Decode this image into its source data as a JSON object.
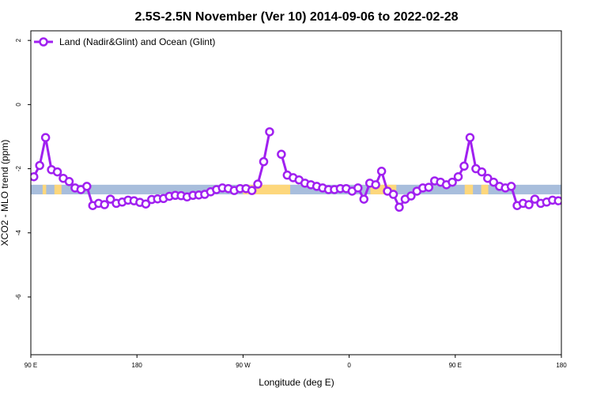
{
  "chart_data": {
    "type": "line",
    "title": "2.5S-2.5N November (Ver 10)   2014-09-06 to 2022-02-28",
    "xlabel": "Longitude (deg E)",
    "ylabel": "XCO2 - MLO trend (ppm)",
    "xlim": [
      90,
      540
    ],
    "ylim": [
      -7.8,
      2.3
    ],
    "xticks": [
      {
        "value": 90,
        "label": "90 E"
      },
      {
        "value": 180,
        "label": "180"
      },
      {
        "value": 270,
        "label": "90 W"
      },
      {
        "value": 360,
        "label": "0"
      },
      {
        "value": 450,
        "label": "90 E"
      },
      {
        "value": 540,
        "label": "180"
      }
    ],
    "yticks": [
      {
        "value": 2,
        "label": "2"
      },
      {
        "value": 0,
        "label": "0"
      },
      {
        "value": -2,
        "label": "-2"
      },
      {
        "value": -4,
        "label": "-4"
      },
      {
        "value": -6,
        "label": "-6"
      }
    ],
    "grid": false,
    "legend_position": "top-left",
    "land_ocean_band": {
      "y_range": [
        -2.8,
        -2.5
      ],
      "ocean_color": "#a8bedc",
      "land_color": "#fdd77c",
      "land_spans": [
        [
          100,
          103
        ],
        [
          110,
          116
        ],
        [
          270,
          310
        ],
        [
          378,
          400
        ],
        [
          458,
          465
        ],
        [
          472,
          478
        ]
      ]
    },
    "series": [
      {
        "name": "Land (Nadir&Glint) and Ocean (Glint)",
        "color": "#a020f0",
        "segments": [
          {
            "x": [
              92.5,
              97.5,
              102.5,
              107.5,
              112.5,
              117.5,
              122.5,
              127.5,
              132.5,
              137.5,
              142.5,
              147.5,
              152.5,
              157.5,
              162.5,
              167.5,
              172.5,
              177.5,
              182.5,
              187.5,
              192.5,
              197.5,
              202.5,
              207.5,
              212.5,
              217.5,
              222.5,
              227.5,
              232.5,
              237.5,
              242.5,
              247.5,
              252.5,
              257.5,
              262.5,
              267.5,
              272.5,
              277.5,
              282.5,
              287.5,
              292.5
            ],
            "y": [
              -2.25,
              -1.9,
              -1.03,
              -2.03,
              -2.1,
              -2.3,
              -2.4,
              -2.6,
              -2.65,
              -2.55,
              -3.15,
              -3.08,
              -3.12,
              -2.95,
              -3.08,
              -3.04,
              -2.98,
              -3.0,
              -3.05,
              -3.1,
              -2.96,
              -2.94,
              -2.93,
              -2.86,
              -2.83,
              -2.84,
              -2.88,
              -2.83,
              -2.82,
              -2.8,
              -2.72,
              -2.65,
              -2.6,
              -2.62,
              -2.68,
              -2.62,
              -2.62,
              -2.68,
              -2.48,
              -1.78,
              -0.85
            ]
          },
          {
            "x": [
              302.5,
              307.5,
              312.5,
              317.5,
              322.5,
              327.5,
              332.5,
              337.5,
              342.5,
              347.5,
              352.5,
              357.5,
              362.5,
              367.5,
              372.5,
              377.5,
              382.5,
              387.5,
              392.5,
              397.5,
              402.5,
              407.5,
              412.5,
              417.5,
              422.5,
              427.5,
              432.5,
              437.5,
              442.5,
              447.5,
              452.5,
              457.5,
              462.5,
              467.5,
              472.5,
              477.5,
              482.5,
              487.5,
              492.5,
              497.5,
              502.5,
              507.5,
              512.5,
              517.5,
              522.5,
              527.5,
              532.5,
              537.5
            ],
            "y": [
              -1.55,
              -2.2,
              -2.28,
              -2.35,
              -2.45,
              -2.5,
              -2.55,
              -2.6,
              -2.65,
              -2.65,
              -2.62,
              -2.62,
              -2.7,
              -2.6,
              -2.95,
              -2.45,
              -2.5,
              -2.08,
              -2.7,
              -2.8,
              -3.2,
              -2.95,
              -2.85,
              -2.7,
              -2.6,
              -2.58,
              -2.38,
              -2.42,
              -2.5,
              -2.42,
              -2.25,
              -1.92,
              -1.03,
              -2.0,
              -2.1,
              -2.3,
              -2.42,
              -2.55,
              -2.6,
              -2.55,
              -3.15,
              -3.08,
              -3.12,
              -2.95,
              -3.08,
              -3.04,
              -2.98,
              -3.0
            ]
          }
        ]
      }
    ]
  }
}
